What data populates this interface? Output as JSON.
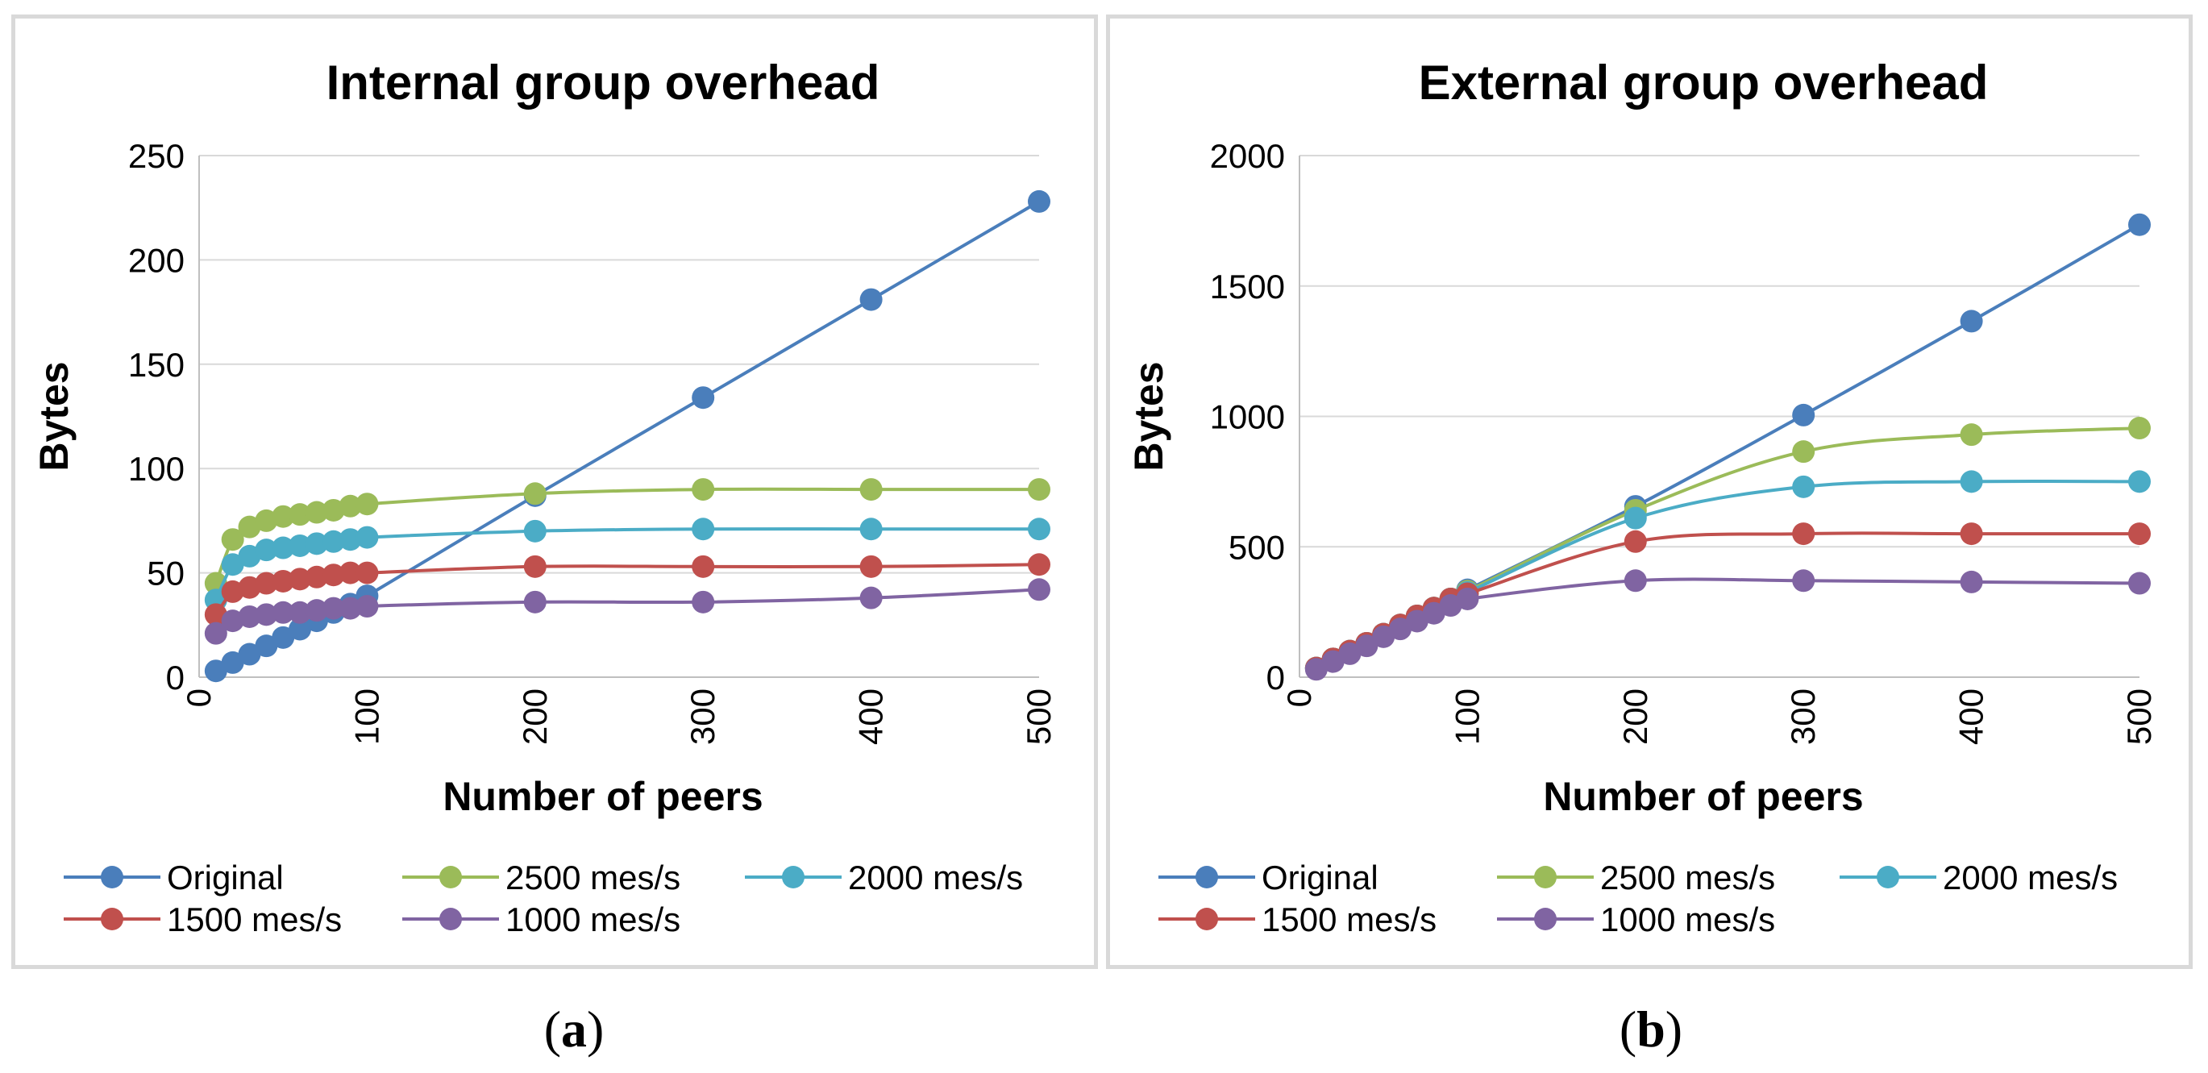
{
  "colors": {
    "original": "#4a7ebb",
    "rate2500": "#9bbb59",
    "rate2000": "#4bacc6",
    "rate1500": "#c0504d",
    "rate1000": "#8064a2",
    "gridline": "#d9d9d9",
    "axis": "#bfbfbf"
  },
  "captions": {
    "a": "a",
    "b": "b"
  },
  "chart_data": [
    {
      "type": "line",
      "title": "Internal group overhead",
      "xlabel": "Number of peers",
      "ylabel": "Bytes",
      "xlim": [
        0,
        500
      ],
      "ylim": [
        0,
        250
      ],
      "xticks": [
        0,
        100,
        200,
        300,
        400,
        500
      ],
      "yticks": [
        0,
        50,
        100,
        150,
        200,
        250
      ],
      "grid": true,
      "legend": "bottom",
      "series": [
        {
          "name": "Original",
          "colorKey": "original",
          "x": [
            10,
            20,
            30,
            40,
            50,
            60,
            70,
            80,
            90,
            100,
            200,
            300,
            400,
            500
          ],
          "y": [
            3,
            7,
            11,
            15,
            19,
            23,
            27,
            31,
            35,
            39,
            87,
            134,
            181,
            228
          ]
        },
        {
          "name": "2500 mes/s",
          "colorKey": "rate2500",
          "x": [
            10,
            20,
            30,
            40,
            50,
            60,
            70,
            80,
            90,
            100,
            200,
            300,
            400,
            500
          ],
          "y": [
            45,
            66,
            72,
            75,
            77,
            78,
            79,
            80,
            82,
            83,
            88,
            90,
            90,
            90
          ]
        },
        {
          "name": "2000 mes/s",
          "colorKey": "rate2000",
          "x": [
            10,
            20,
            30,
            40,
            50,
            60,
            70,
            80,
            90,
            100,
            200,
            300,
            400,
            500
          ],
          "y": [
            37,
            54,
            58,
            61,
            62,
            63,
            64,
            65,
            66,
            67,
            70,
            71,
            71,
            71
          ]
        },
        {
          "name": "1500 mes/s",
          "colorKey": "rate1500",
          "x": [
            10,
            20,
            30,
            40,
            50,
            60,
            70,
            80,
            90,
            100,
            200,
            300,
            400,
            500
          ],
          "y": [
            30,
            41,
            43,
            45,
            46,
            47,
            48,
            49,
            50,
            50,
            53,
            53,
            53,
            54
          ]
        },
        {
          "name": "1000 mes/s",
          "colorKey": "rate1000",
          "x": [
            10,
            20,
            30,
            40,
            50,
            60,
            70,
            80,
            90,
            100,
            200,
            300,
            400,
            500
          ],
          "y": [
            21,
            27,
            29,
            30,
            31,
            31,
            32,
            33,
            33,
            34,
            36,
            36,
            38,
            42
          ]
        }
      ]
    },
    {
      "type": "line",
      "title": "External group overhead",
      "xlabel": "Number of peers",
      "ylabel": "Bytes",
      "xlim": [
        0,
        500
      ],
      "ylim": [
        0,
        2000
      ],
      "xticks": [
        0,
        100,
        200,
        300,
        400,
        500
      ],
      "yticks": [
        0,
        500,
        1000,
        1500,
        2000
      ],
      "grid": true,
      "legend": "bottom",
      "series": [
        {
          "name": "Original",
          "colorKey": "original",
          "x": [
            10,
            20,
            30,
            40,
            50,
            60,
            70,
            80,
            90,
            100,
            200,
            300,
            400,
            500
          ],
          "y": [
            35,
            70,
            100,
            130,
            165,
            200,
            235,
            265,
            300,
            335,
            655,
            1005,
            1365,
            1735
          ]
        },
        {
          "name": "2500 mes/s",
          "colorKey": "rate2500",
          "x": [
            10,
            20,
            30,
            40,
            50,
            60,
            70,
            80,
            90,
            100,
            200,
            300,
            400,
            500
          ],
          "y": [
            35,
            70,
            100,
            130,
            165,
            200,
            235,
            265,
            300,
            330,
            640,
            865,
            930,
            955
          ]
        },
        {
          "name": "2000 mes/s",
          "colorKey": "rate2000",
          "x": [
            10,
            20,
            30,
            40,
            50,
            60,
            70,
            80,
            90,
            100,
            200,
            300,
            400,
            500
          ],
          "y": [
            35,
            70,
            100,
            130,
            165,
            200,
            235,
            265,
            300,
            325,
            610,
            730,
            750,
            750
          ]
        },
        {
          "name": "1500 mes/s",
          "colorKey": "rate1500",
          "x": [
            10,
            20,
            30,
            40,
            50,
            60,
            70,
            80,
            90,
            100,
            200,
            300,
            400,
            500
          ],
          "y": [
            35,
            70,
            100,
            130,
            165,
            200,
            235,
            265,
            300,
            320,
            520,
            550,
            550,
            550
          ]
        },
        {
          "name": "1000 mes/s",
          "colorKey": "rate1000",
          "x": [
            10,
            20,
            30,
            40,
            50,
            60,
            70,
            80,
            90,
            100,
            200,
            300,
            400,
            500
          ],
          "y": [
            30,
            60,
            90,
            120,
            155,
            185,
            215,
            245,
            275,
            300,
            370,
            370,
            365,
            360
          ]
        }
      ]
    }
  ]
}
